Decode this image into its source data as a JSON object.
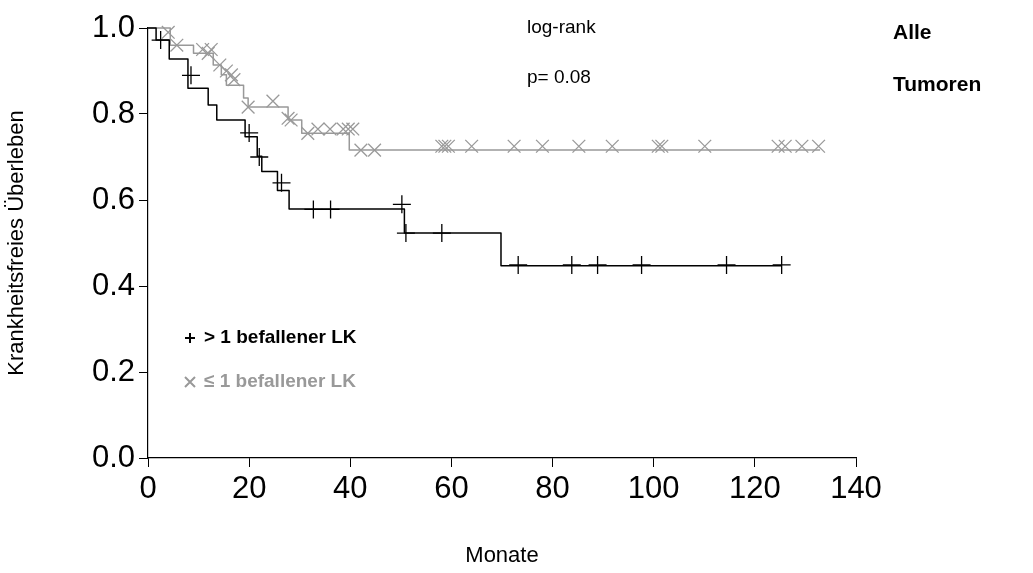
{
  "chart_data": {
    "type": "step",
    "xlabel": "Monate",
    "ylabel": "Krankheitsfreies Überleben",
    "xlim": [
      0,
      140
    ],
    "xticks": [
      0,
      20,
      40,
      60,
      80,
      100,
      120,
      140
    ],
    "ylim": [
      0,
      1
    ],
    "yticks": [
      {
        "value": 0,
        "label": "0.0"
      },
      {
        "value": 0.2,
        "label": "0.2"
      },
      {
        "value": 0.4,
        "label": "0.4"
      },
      {
        "value": 0.6,
        "label": "0.6"
      },
      {
        "value": 0.8,
        "label": "0.8"
      },
      {
        "value": 1,
        "label": "1.0"
      }
    ],
    "grid": false,
    "legend": "bottom left",
    "line_style": "solid",
    "annotations": [
      "log-rank",
      "p= 0.08",
      "Alle",
      "Tumoren"
    ],
    "series": [
      {
        "color": "#000000",
        "x": [
          0,
          1.6,
          4.2,
          7.9,
          11.9,
          13.6,
          19.2,
          21.6,
          22.5,
          25.6,
          27.9,
          50.7,
          69.8,
          125.3
        ],
        "values": [
          1,
          0.972,
          0.928,
          0.86,
          0.821,
          0.786,
          0.747,
          0.702,
          0.666,
          0.622,
          0.579,
          0.523,
          0.447,
          0.447
        ]
      },
      {
        "color": "#999999",
        "x": [
          0,
          4.4,
          9.0,
          12.9,
          14.5,
          15.5,
          18.9,
          19.8,
          27.7,
          30.4,
          39.8,
          132.9
        ],
        "values": [
          1,
          0.96,
          0.941,
          0.914,
          0.891,
          0.867,
          0.837,
          0.816,
          0.786,
          0.755,
          0.716,
          0.716
        ]
      },
      {
        "name": "> 1 befallener LK",
        "type": "scatter",
        "color": "#000000",
        "marker": "cross",
        "x": [
          2.5,
          8.5,
          20.0,
          22.0,
          26.4,
          32.7,
          36.1,
          50.2,
          51.0,
          58.1,
          73.2,
          83.8,
          88.9,
          97.6,
          114.4,
          125.3
        ],
        "values": [
          0.972,
          0.89,
          0.756,
          0.7,
          0.64,
          0.578,
          0.578,
          0.59,
          0.523,
          0.523,
          0.449,
          0.449,
          0.449,
          0.449,
          0.449,
          0.449
        ]
      },
      {
        "name": "≤ 1 befallener LK",
        "type": "scatter",
        "color": "#999999",
        "marker": "x",
        "x": [
          4.0,
          5.7,
          10.8,
          12.5,
          11.9,
          14.2,
          15.5,
          16.5,
          17.0,
          19.8,
          24.7,
          27.7,
          28.3,
          31.6,
          33.6,
          36.0,
          38.6,
          39.6,
          40.5,
          42.1,
          44.8,
          58.1,
          58.7,
          59.4,
          64.0,
          72.4,
          78.0,
          85.2,
          91.8,
          100.9,
          101.6,
          110.1,
          124.6,
          126.0,
          129.3,
          132.6
        ],
        "values": [
          0.99,
          0.96,
          0.95,
          0.95,
          0.941,
          0.914,
          0.9,
          0.891,
          0.88,
          0.816,
          0.83,
          0.79,
          0.786,
          0.755,
          0.765,
          0.765,
          0.765,
          0.765,
          0.765,
          0.716,
          0.716,
          0.725,
          0.725,
          0.725,
          0.725,
          0.725,
          0.725,
          0.725,
          0.725,
          0.725,
          0.725,
          0.725,
          0.725,
          0.725,
          0.725,
          0.725
        ]
      }
    ]
  }
}
